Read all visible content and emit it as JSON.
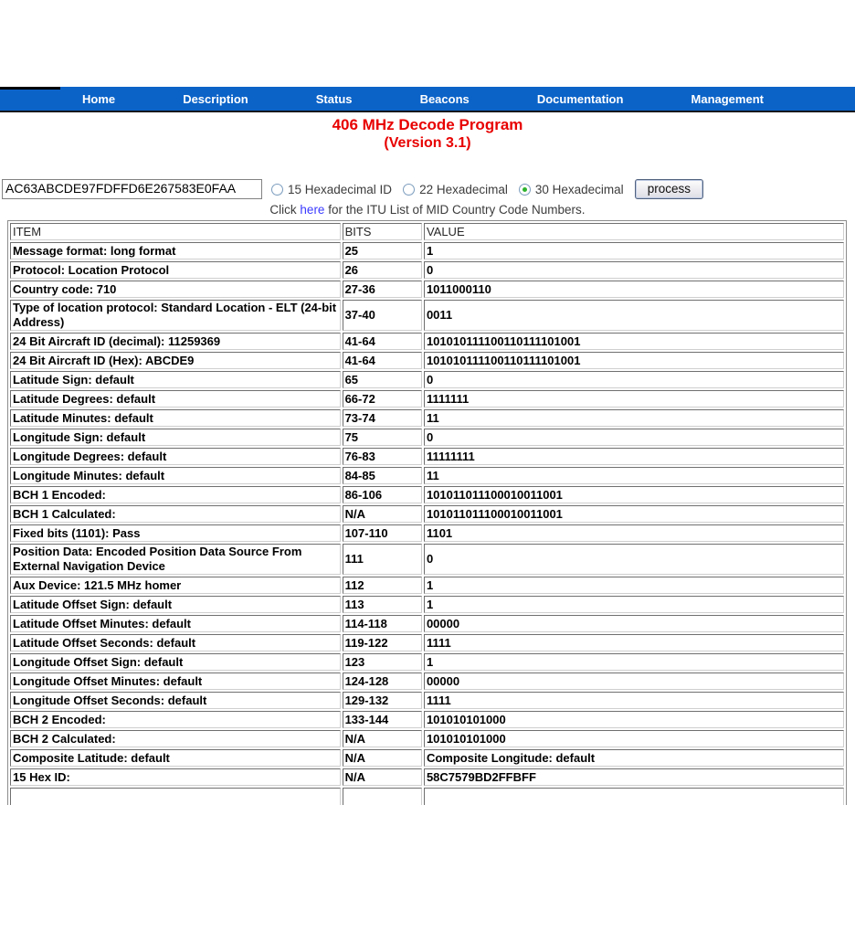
{
  "nav": {
    "items": [
      "Home",
      "Description",
      "Status",
      "Beacons",
      "Documentation",
      "Management"
    ]
  },
  "header": {
    "title": "406 MHz Decode Program",
    "version": "(Version 3.1)"
  },
  "controls": {
    "beacon_input": {
      "value": "AC63ABCDE97FDFFD6E267583E0FAA"
    },
    "radios": [
      {
        "label": "15 Hexadecimal ID",
        "selected": false
      },
      {
        "label": "22 Hexadecimal",
        "selected": false
      },
      {
        "label": "30 Hexadecimal",
        "selected": true
      }
    ],
    "process_button_label": "process"
  },
  "link_line": {
    "before": "Click ",
    "link_text": "here",
    "after": " for the ITU List of MID Country Code Numbers."
  },
  "decode_table": {
    "headers": [
      "ITEM",
      "BITS",
      "VALUE"
    ],
    "rows": [
      [
        "Message format: long format",
        "25",
        "1"
      ],
      [
        "Protocol: Location Protocol",
        "26",
        "0"
      ],
      [
        "Country code: 710",
        "27-36",
        "1011000110"
      ],
      [
        "Type of location protocol: Standard Location - ELT (24-bit Address)",
        "37-40",
        "0011"
      ],
      [
        "24 Bit Aircraft ID (decimal): 11259369",
        "41-64",
        "101010111100110111101001"
      ],
      [
        "24 Bit Aircraft ID (Hex): ABCDE9",
        "41-64",
        "101010111100110111101001"
      ],
      [
        "Latitude Sign: default",
        "65",
        "0"
      ],
      [
        "Latitude Degrees: default",
        "66-72",
        "1111111"
      ],
      [
        "Latitude Minutes: default",
        "73-74",
        "11"
      ],
      [
        "Longitude Sign: default",
        "75",
        "0"
      ],
      [
        "Longitude Degrees: default",
        "76-83",
        "11111111"
      ],
      [
        "Longitude Minutes: default",
        "84-85",
        "11"
      ],
      [
        "BCH 1 Encoded:",
        "86-106",
        "101011011100010011001"
      ],
      [
        "BCH 1 Calculated:",
        "N/A",
        "101011011100010011001"
      ],
      [
        "Fixed bits (1101): Pass",
        "107-110",
        "1101"
      ],
      [
        "Position Data: Encoded Position Data Source From External Navigation Device",
        "111",
        "0"
      ],
      [
        "Aux Device: 121.5 MHz homer",
        "112",
        "1"
      ],
      [
        "Latitude Offset Sign: default",
        "113",
        "1"
      ],
      [
        "Latitude Offset Minutes: default",
        "114-118",
        "00000"
      ],
      [
        "Latitude Offset Seconds: default",
        "119-122",
        "1111"
      ],
      [
        "Longitude Offset Sign: default",
        "123",
        "1"
      ],
      [
        "Longitude Offset Minutes: default",
        "124-128",
        "00000"
      ],
      [
        "Longitude Offset Seconds: default",
        "129-132",
        "1111"
      ],
      [
        "BCH 2 Encoded:",
        "133-144",
        "101010101000"
      ],
      [
        "BCH 2 Calculated:",
        "N/A",
        "101010101000"
      ],
      [
        "Composite Latitude: default",
        "N/A",
        "Composite Longitude: default"
      ],
      [
        "15 Hex ID:",
        "N/A",
        "58C7579BD2FFBFF"
      ],
      [
        "",
        "",
        ""
      ]
    ]
  },
  "colors": {
    "nav_background": "#0b63c8",
    "title_red": "#e80000",
    "link_blue": "#3a3aff",
    "radio_selected_green": "#2db32d",
    "table_border": "#6f6f6f"
  }
}
